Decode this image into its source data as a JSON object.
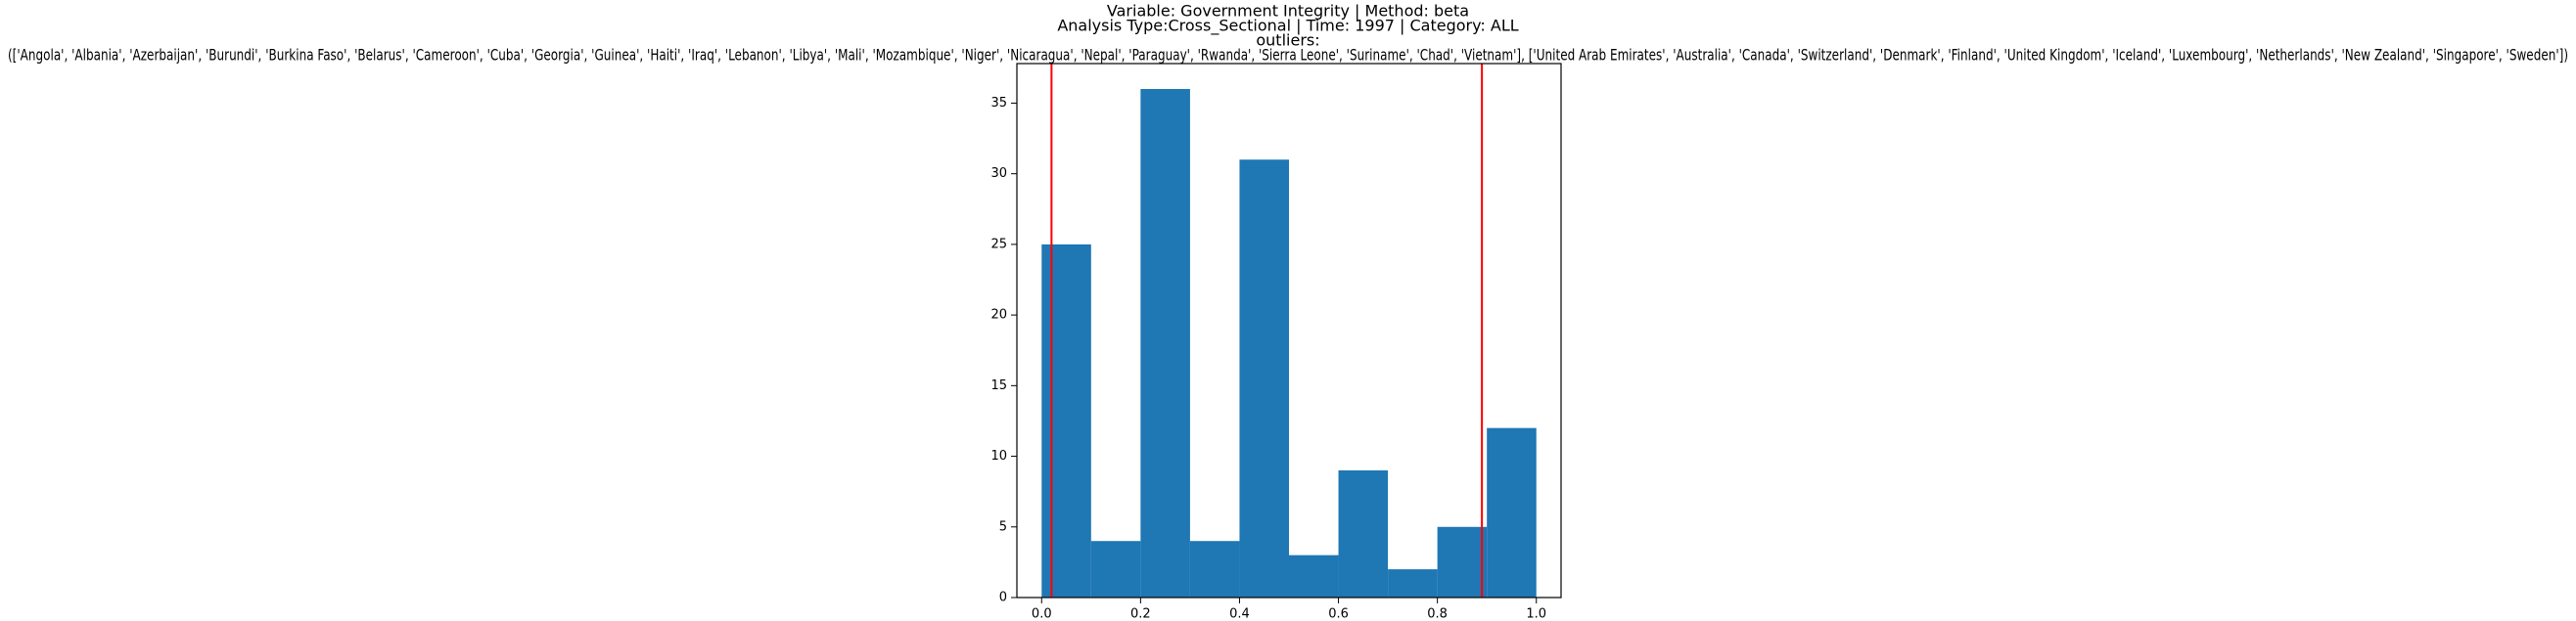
{
  "chart_data": {
    "type": "histogram",
    "title": [
      "Variable: Government Integrity | Method: beta",
      "Analysis Type:Cross_Sectional | Time: 1997 | Category: ALL",
      "outliers:",
      "(['Angola', 'Albania', 'Azerbaijan', 'Burundi', 'Burkina Faso', 'Belarus', 'Cameroon', 'Cuba', 'Georgia', 'Guinea', 'Haiti', 'Iraq', 'Lebanon', 'Libya', 'Mali', 'Mozambique', 'Niger', 'Nicaragua', 'Nepal', 'Paraguay', 'Rwanda', 'Sierra Leone', 'Suriname', 'Chad', 'Vietnam'], ['United Arab Emirates', 'Australia', 'Canada', 'Switzerland', 'Denmark', 'Finland', 'United Kingdom', 'Iceland', 'Luxembourg', 'Netherlands', 'New Zealand', 'Singapore', 'Sweden'])"
    ],
    "bins": [
      0,
      0.1,
      0.2,
      0.3,
      0.4,
      0.5,
      0.6,
      0.7,
      0.8,
      0.9,
      1.0
    ],
    "values": [
      25,
      4,
      36,
      4,
      31,
      3,
      9,
      2,
      5,
      12
    ],
    "color": "#1f77b4",
    "vlines": [
      {
        "x": 0.02,
        "color": "#ff0000"
      },
      {
        "x": 0.89,
        "color": "#ff0000"
      }
    ],
    "xlim": [
      -0.05,
      1.05
    ],
    "ylim": [
      0,
      37.8
    ],
    "xticks": [
      {
        "value": 0,
        "label": "0.0"
      },
      0.2,
      0.4,
      0.6,
      0.8,
      {
        "value": 1,
        "label": "1.0"
      }
    ],
    "yticks": [
      0,
      5,
      10,
      15,
      20,
      25,
      30,
      35
    ]
  }
}
